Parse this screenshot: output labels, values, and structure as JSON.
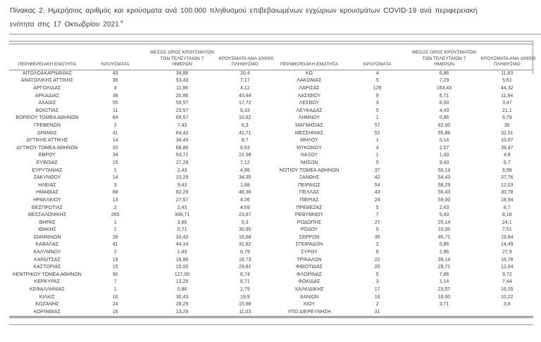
{
  "title": {
    "line1": "Πίνακας 2:  Ημερήσιος αριθμός και κρούσματα ανά 100.000 πληθυσμού επιβεβαιωμένων εγχώριων κρουσμάτων COVID-19 ανά περιφερειακή",
    "line2": "ενότητα στις 17 Οκτωβρίου 2021",
    "footnote_marker": "4"
  },
  "colors": {
    "text": "#3c3c3c",
    "rule": "#8f8f8f",
    "background": "#ffffff"
  },
  "table": {
    "headers": {
      "region": "ΠΕΡΙΦΕΡΕΙΑΚΗ ΕΝΟΤΗΤΑ",
      "cases": "ΚΡΟΥΣΜΑΤΑ",
      "avg7_line1": "ΜΕΣΟΣ ΟΡΟΣ ΚΡΟΥΣΜΑΤΩΝ",
      "avg7_line2": "ΤΩΝ ΤΕΛΕΥΤΑΙΩΝ 7",
      "avg7_line3": "ΗΜΕΡΩΝ",
      "per100k_line1": "ΚΡΟΥΣΜΑΤΑ ΑΝΑ 100000",
      "per100k_line2": "ΠΛΗΘΥΣΜΟ"
    },
    "left_rows": [
      [
        "ΑΙΤΩΛΟΑΚΑΡΝΑΝΙΑΣ",
        "43",
        "34,86",
        "20,4"
      ],
      [
        "ΑΝΑΤΟΛΙΚΗΣ ΑΤΤΙΚΗΣ",
        "36",
        "53,43",
        "7,17"
      ],
      [
        "ΑΡΓΟΛΙΔΑΣ",
        "4",
        "11,86",
        "4,12"
      ],
      [
        "ΑΡΚΑΔΙΑΣ",
        "38",
        "20,86",
        "43,84"
      ],
      [
        "ΑΧΑΪΑΣ",
        "55",
        "59,57",
        "17,72"
      ],
      [
        "ΒΟΙΩΤΙΑΣ",
        "11",
        "23,57",
        "9,33"
      ],
      [
        "ΒΟΡΕΙΟΥ ΤΟΜΕΑ ΑΘΗΝΩΝ",
        "64",
        "69,57",
        "10,82"
      ],
      [
        "ΓΡΕΒΕΝΩΝ",
        "2",
        "7,43",
        "6,3"
      ],
      [
        "ΔΡΑΜΑΣ",
        "41",
        "64,43",
        "41,71"
      ],
      [
        "ΔΥΤΙΚΗΣ ΑΤΤΙΚΗΣ",
        "14",
        "34,43",
        "8,7"
      ],
      [
        "ΔΥΤΙΚΟΥ ΤΟΜΕΑ ΑΘΗΝΩΝ",
        "32",
        "68,86",
        "6,53"
      ],
      [
        "ΕΒΡΟΥ",
        "34",
        "53,71",
        "22,98"
      ],
      [
        "ΕΥΒΟΙΑΣ",
        "15",
        "27,29",
        "7,12"
      ],
      [
        "ΕΥΡΥΤΑΝΙΑΣ",
        "1",
        "2,43",
        "4,98"
      ],
      [
        "ΖΑΚΥΝΘΟΥ",
        "14",
        "10,29",
        "34,35"
      ],
      [
        "ΗΛΕΙΑΣ",
        "3",
        "9,43",
        "1,88"
      ],
      [
        "ΗΜΑΘΙΑΣ",
        "68",
        "82,29",
        "48,36"
      ],
      [
        "ΗΡΑΚΛΕΙΟΥ",
        "13",
        "27,57",
        "4,26"
      ],
      [
        "ΘΕΣΠΡΩΤΙΑΣ",
        "2",
        "2,43",
        "4,59"
      ],
      [
        "ΘΕΣΣΑΛΟΝΙΚΗΣ",
        "265",
        "348,71",
        "23,87"
      ],
      [
        "ΘΗΡΑΣ",
        "1",
        "3,86",
        "5,3"
      ],
      [
        "ΙΘΑΚΗΣ",
        "1",
        "0,71",
        "30,95"
      ],
      [
        "ΙΩΑΝΝΙΝΩΝ",
        "28",
        "33,43",
        "16,68"
      ],
      [
        "ΚΑΒΑΛΑΣ",
        "41",
        "44,14",
        "32,82"
      ],
      [
        "ΚΑΛΥΜΝΟΥ",
        "2",
        "1,43",
        "6,79"
      ],
      [
        "ΚΑΡΔΙΤΣΑΣ",
        "19",
        "18,86",
        "16,73"
      ],
      [
        "ΚΑΣΤΟΡΙΑΣ",
        "15",
        "15,00",
        "29,81"
      ],
      [
        "ΚΕΝΤΡΙΚΟΥ ΤΟΜΕΑ ΑΘΗΝΩΝ",
        "90",
        "127,00",
        "8,74"
      ],
      [
        "ΚΕΡΚΥΡΑΣ",
        "7",
        "13,29",
        "6,71"
      ],
      [
        "ΚΕΦΑΛΛΗΝΙΑΣ",
        "1",
        "0,86",
        "2,79"
      ],
      [
        "ΚΙΛΚΙΣ",
        "16",
        "30,43",
        "19,9"
      ],
      [
        "ΚΟΖΑΝΗΣ",
        "24",
        "28,29",
        "15,98"
      ],
      [
        "ΚΟΡΙΝΘΙΑΣ",
        "16",
        "13,29",
        "11,03"
      ]
    ],
    "right_rows": [
      [
        "ΚΩ",
        "4",
        "6,86",
        "11,63"
      ],
      [
        "ΛΑΚΩΝΙΑΣ",
        "5",
        "7,29",
        "5,61"
      ],
      [
        "ΛΑΡΙΣΑΣ",
        "126",
        "163,43",
        "44,32"
      ],
      [
        "ΛΑΣΙΘΙΟΥ",
        "9",
        "6,71",
        "11,94"
      ],
      [
        "ΛΕΣΒΟΥ",
        "3",
        "8,00",
        "3,47"
      ],
      [
        "ΛΕΥΚΑΔΑΣ",
        "5",
        "4,43",
        "21,1"
      ],
      [
        "ΛΗΜΝΟΥ",
        "1",
        "0,86",
        "5,79"
      ],
      [
        "ΜΑΓΝΗΣΙΑΣ",
        "57",
        "82,00",
        "30"
      ],
      [
        "ΜΕΣΣΗΝΙΑΣ",
        "52",
        "55,86",
        "32,51"
      ],
      [
        "ΜΗΛΟΥ",
        "1",
        "0,14",
        "10,07"
      ],
      [
        "ΜΥΚΟΝΟΥ",
        "4",
        "2,57",
        "39,47"
      ],
      [
        "ΝΑΞΟΥ",
        "1",
        "1,43",
        "4,8"
      ],
      [
        "ΝΗΣΩΝ",
        "5",
        "9,43",
        "6,7"
      ],
      [
        "ΝΟΤΙΟΥ ΤΟΜΕΑ ΑΘΗΝΩΝ",
        "37",
        "50,14",
        "6,98"
      ],
      [
        "ΞΑΝΘΗΣ",
        "42",
        "54,43",
        "37,76"
      ],
      [
        "ΠΕΙΡΑΙΩΣ",
        "54",
        "58,29",
        "12,03"
      ],
      [
        "ΠΕΛΛΑΣ",
        "43",
        "56,43",
        "30,78"
      ],
      [
        "ΠΙΕΡΙΑΣ",
        "24",
        "59,00",
        "18,94"
      ],
      [
        "ΠΡΕΒΕΖΑΣ",
        "5",
        "2,43",
        "8,7"
      ],
      [
        "ΡΕΘΥΜΝΟΥ",
        "7",
        "5,43",
        "8,18"
      ],
      [
        "ΡΟΔΟΠΗΣ",
        "27",
        "25,14",
        "24,1"
      ],
      [
        "ΡΟΔΟΥ",
        "9",
        "15,00",
        "7,51"
      ],
      [
        "ΣΕΡΡΩΝ",
        "35",
        "46,71",
        "19,84"
      ],
      [
        "ΣΠΟΡΑΔΩΝ",
        "2",
        "0,86",
        "14,49"
      ],
      [
        "ΣΥΡΟΥ",
        "6",
        "2,86",
        "27,9"
      ],
      [
        "ΤΡΙΚΑΛΩΝ",
        "22",
        "39,14",
        "16,78"
      ],
      [
        "ΦΘΙΩΤΙΔΑΣ",
        "20",
        "29,71",
        "12,64"
      ],
      [
        "ΦΛΩΡΙΝΑΣ",
        "5",
        "7,86",
        "9,72"
      ],
      [
        "ΦΩΚΙΔΑΣ",
        "3",
        "1,14",
        "7,44"
      ],
      [
        "ΧΑΛΚΙΔΙΚΗΣ",
        "17",
        "23,57",
        "16,05"
      ],
      [
        "ΧΑΝΙΩΝ",
        "16",
        "16,00",
        "10,22"
      ],
      [
        "ΧΙΟΥ",
        "2",
        "3,71",
        "3,8"
      ],
      [
        "ΥΠΟ ΔΙΕΡΕΥΝΗΣΗ",
        "31",
        "",
        ""
      ]
    ]
  }
}
